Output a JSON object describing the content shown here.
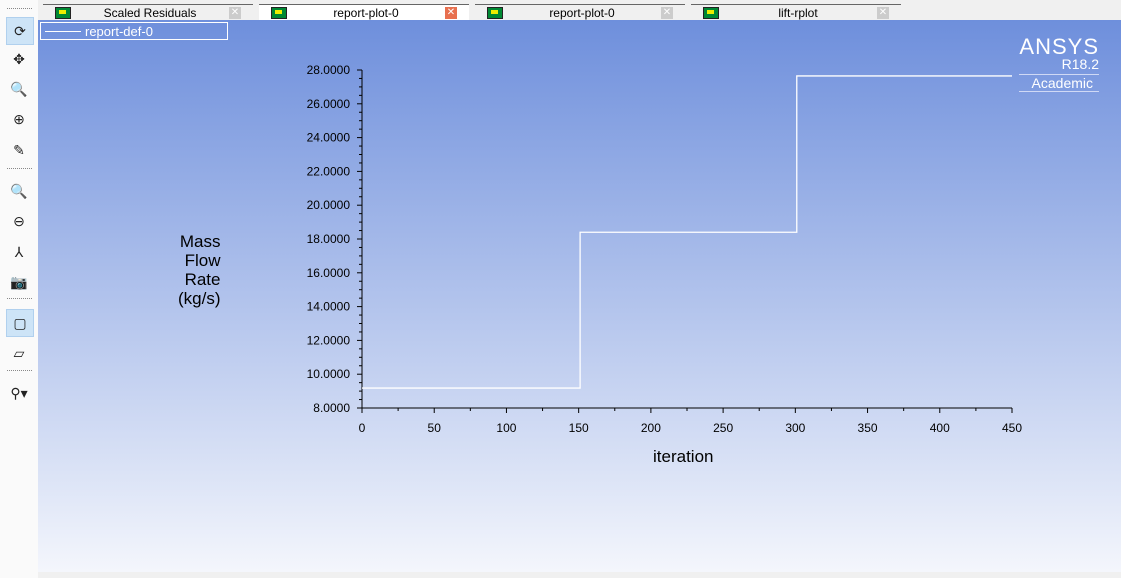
{
  "tabs": [
    {
      "label": "Scaled Residuals",
      "active": false
    },
    {
      "label": "report-plot-0",
      "active": true
    },
    {
      "label": "report-plot-0",
      "active": false
    },
    {
      "label": "lift-rplot",
      "active": false
    }
  ],
  "toolbar": [
    "rotate-icon",
    "pan-icon",
    "zoom-fit-icon",
    "zoom-in-icon",
    "probe-icon",
    "zoom-box-icon",
    "zoom-out-icon",
    "axes-icon",
    "snapshot-icon",
    "perspective-icon",
    "orthographic-icon",
    "display-options-icon"
  ],
  "logo": {
    "brand": "ANSYS",
    "version": "R18.2",
    "edition": "Academic"
  },
  "chart_data": {
    "type": "line",
    "title": "",
    "xlabel": "iteration",
    "ylabel": [
      "Mass",
      "Flow",
      "Rate",
      "(kg/s)"
    ],
    "xlim": [
      0,
      450
    ],
    "ylim": [
      8,
      28
    ],
    "xticks": [
      "0",
      "50",
      "100",
      "150",
      "200",
      "250",
      "300",
      "350",
      "400",
      "450"
    ],
    "yticks": [
      "8.0000",
      "10.0000",
      "12.0000",
      "14.0000",
      "16.0000",
      "18.0000",
      "20.0000",
      "22.0000",
      "24.0000",
      "26.0000",
      "28.0000"
    ],
    "legend": "top-left",
    "series": [
      {
        "name": "report-def-0",
        "color": "#ffffff",
        "x": [
          0,
          151,
          151,
          301,
          301,
          450
        ],
        "y": [
          9.18,
          9.18,
          18.4,
          18.4,
          27.65,
          27.65
        ]
      }
    ]
  }
}
